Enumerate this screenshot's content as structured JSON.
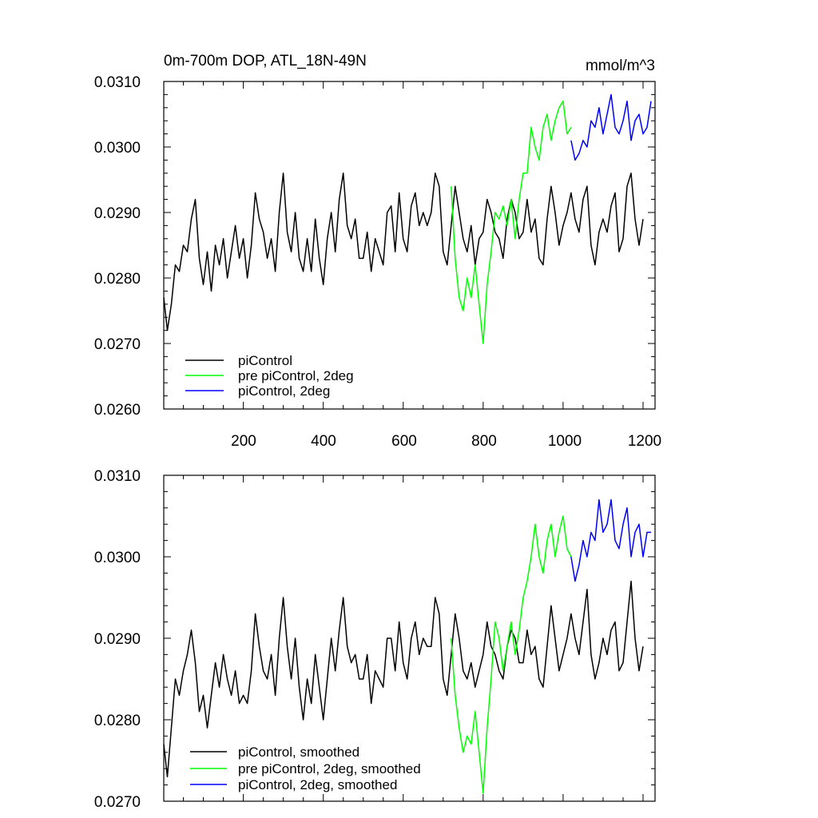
{
  "colors": {
    "black": "#000000",
    "green": "#00ff00",
    "blue": "#0000ff",
    "frame": "#000000"
  },
  "chart_data": [
    {
      "type": "line",
      "title": "0m-700m DOP, ATL_18N-49N",
      "units": "mmol/m^3",
      "xlabel": "",
      "ylabel": "",
      "xlim": [
        1,
        1230
      ],
      "ylim": [
        0.026,
        0.031
      ],
      "yticks": [
        "0.0260",
        "0.0270",
        "0.0280",
        "0.0290",
        "0.0300",
        "0.0310"
      ],
      "ytick_values": [
        0.026,
        0.027,
        0.028,
        0.029,
        0.03,
        0.031
      ],
      "xticks": [
        "200",
        "400",
        "600",
        "800",
        "1000",
        "1200"
      ],
      "xtick_values": [
        200,
        400,
        600,
        800,
        1000,
        1200
      ],
      "legend": "bottom-left",
      "series": [
        {
          "name": "piControl",
          "color": "black",
          "x": [
            1,
            10,
            20,
            30,
            40,
            50,
            60,
            70,
            80,
            90,
            100,
            110,
            120,
            130,
            140,
            150,
            160,
            170,
            180,
            190,
            200,
            210,
            220,
            230,
            240,
            250,
            260,
            270,
            280,
            290,
            300,
            310,
            320,
            330,
            340,
            350,
            360,
            370,
            380,
            390,
            400,
            410,
            420,
            430,
            440,
            450,
            460,
            470,
            480,
            490,
            500,
            510,
            520,
            530,
            540,
            550,
            560,
            570,
            580,
            590,
            600,
            610,
            620,
            630,
            640,
            650,
            660,
            670,
            680,
            690,
            700,
            710,
            720,
            730,
            740,
            750,
            760,
            770,
            780,
            790,
            800,
            810,
            820,
            830,
            840,
            850,
            860,
            870,
            880,
            890,
            900,
            910,
            920,
            930,
            940,
            950,
            960,
            970,
            980,
            990,
            1000,
            1010,
            1020,
            1030,
            1040,
            1050,
            1060,
            1070,
            1080,
            1090,
            1100,
            1110,
            1120,
            1130,
            1140,
            1150,
            1160,
            1170,
            1180,
            1190,
            1200
          ],
          "values": [
            0.0277,
            0.0272,
            0.0276,
            0.0282,
            0.0281,
            0.0285,
            0.0284,
            0.0289,
            0.0292,
            0.0283,
            0.0279,
            0.0284,
            0.0278,
            0.0285,
            0.0282,
            0.0286,
            0.028,
            0.0284,
            0.0288,
            0.0283,
            0.0286,
            0.028,
            0.0285,
            0.0293,
            0.0289,
            0.0287,
            0.0283,
            0.0286,
            0.0281,
            0.029,
            0.0296,
            0.0287,
            0.0284,
            0.029,
            0.0283,
            0.0281,
            0.0286,
            0.0281,
            0.0289,
            0.0283,
            0.0279,
            0.0286,
            0.029,
            0.0284,
            0.0292,
            0.0296,
            0.0288,
            0.0286,
            0.0289,
            0.0283,
            0.0283,
            0.0287,
            0.0281,
            0.0286,
            0.0284,
            0.0282,
            0.029,
            0.0291,
            0.0284,
            0.0293,
            0.0286,
            0.0284,
            0.0291,
            0.0293,
            0.0288,
            0.029,
            0.0288,
            0.029,
            0.0296,
            0.0294,
            0.0284,
            0.0282,
            0.0288,
            0.0294,
            0.029,
            0.0286,
            0.0284,
            0.0288,
            0.0282,
            0.0286,
            0.0287,
            0.0292,
            0.029,
            0.0287,
            0.0286,
            0.0283,
            0.0289,
            0.0292,
            0.029,
            0.0286,
            0.0287,
            0.0292,
            0.0287,
            0.0289,
            0.0283,
            0.0282,
            0.0289,
            0.0294,
            0.029,
            0.0285,
            0.0288,
            0.029,
            0.0293,
            0.0289,
            0.0287,
            0.0292,
            0.0294,
            0.0285,
            0.0282,
            0.0287,
            0.0289,
            0.0287,
            0.0291,
            0.0293,
            0.0284,
            0.0286,
            0.0294,
            0.0296,
            0.0289,
            0.0285,
            0.0289
          ]
        },
        {
          "name": "pre piControl, 2deg",
          "color": "green",
          "x": [
            720,
            730,
            740,
            750,
            760,
            770,
            780,
            790,
            800,
            810,
            820,
            830,
            840,
            850,
            860,
            870,
            880,
            890,
            900,
            910,
            920,
            930,
            940,
            950,
            960,
            970,
            980,
            990,
            1000,
            1010,
            1020
          ],
          "values": [
            0.0294,
            0.0283,
            0.0277,
            0.0275,
            0.028,
            0.0277,
            0.0282,
            0.0276,
            0.027,
            0.0279,
            0.0284,
            0.029,
            0.0289,
            0.0291,
            0.0288,
            0.0292,
            0.0286,
            0.0292,
            0.0296,
            0.0296,
            0.0303,
            0.03,
            0.0298,
            0.0303,
            0.0305,
            0.0301,
            0.0304,
            0.0306,
            0.0307,
            0.0302,
            0.0303
          ]
        },
        {
          "name": "piControl, 2deg",
          "color": "blue",
          "x": [
            1020,
            1030,
            1040,
            1050,
            1060,
            1070,
            1080,
            1090,
            1100,
            1110,
            1120,
            1130,
            1140,
            1150,
            1160,
            1170,
            1180,
            1190,
            1200,
            1210,
            1220
          ],
          "values": [
            0.0301,
            0.0298,
            0.0299,
            0.0301,
            0.03,
            0.0304,
            0.0303,
            0.0306,
            0.0302,
            0.0305,
            0.0308,
            0.0303,
            0.0302,
            0.0304,
            0.0307,
            0.0301,
            0.0304,
            0.0305,
            0.0302,
            0.0303,
            0.0307
          ]
        }
      ]
    },
    {
      "type": "line",
      "title": "",
      "xlabel": "",
      "ylabel": "",
      "xlim": [
        1,
        1230
      ],
      "ylim": [
        0.027,
        0.031
      ],
      "yticks": [
        "0.0270",
        "0.0280",
        "0.0290",
        "0.0300",
        "0.0310"
      ],
      "ytick_values": [
        0.027,
        0.028,
        0.029,
        0.03,
        0.031
      ],
      "xticks": [],
      "xtick_values": [
        200,
        400,
        600,
        800,
        1000,
        1200
      ],
      "legend": "bottom-left",
      "series": [
        {
          "name": "piControl, smoothed",
          "color": "black",
          "x": [
            1,
            10,
            20,
            30,
            40,
            50,
            60,
            70,
            80,
            90,
            100,
            110,
            120,
            130,
            140,
            150,
            160,
            170,
            180,
            190,
            200,
            210,
            220,
            230,
            240,
            250,
            260,
            270,
            280,
            290,
            300,
            310,
            320,
            330,
            340,
            350,
            360,
            370,
            380,
            390,
            400,
            410,
            420,
            430,
            440,
            450,
            460,
            470,
            480,
            490,
            500,
            510,
            520,
            530,
            540,
            550,
            560,
            570,
            580,
            590,
            600,
            610,
            620,
            630,
            640,
            650,
            660,
            670,
            680,
            690,
            700,
            710,
            720,
            730,
            740,
            750,
            760,
            770,
            780,
            790,
            800,
            810,
            820,
            830,
            840,
            850,
            860,
            870,
            880,
            890,
            900,
            910,
            920,
            930,
            940,
            950,
            960,
            970,
            980,
            990,
            1000,
            1010,
            1020,
            1030,
            1040,
            1050,
            1060,
            1070,
            1080,
            1090,
            1100,
            1110,
            1120,
            1130,
            1140,
            1150,
            1160,
            1170,
            1180,
            1190,
            1200
          ],
          "values": [
            0.0277,
            0.0273,
            0.0279,
            0.0285,
            0.0283,
            0.0286,
            0.0288,
            0.0291,
            0.0287,
            0.0281,
            0.0283,
            0.0279,
            0.0283,
            0.0287,
            0.0284,
            0.0288,
            0.0285,
            0.0283,
            0.0286,
            0.0282,
            0.0283,
            0.0282,
            0.0286,
            0.0293,
            0.0289,
            0.0286,
            0.0285,
            0.0288,
            0.0283,
            0.029,
            0.0295,
            0.0289,
            0.0285,
            0.029,
            0.0284,
            0.028,
            0.0285,
            0.0282,
            0.0288,
            0.0284,
            0.028,
            0.0285,
            0.029,
            0.0286,
            0.0291,
            0.0295,
            0.0289,
            0.0287,
            0.0288,
            0.0285,
            0.0285,
            0.0288,
            0.0282,
            0.0286,
            0.0285,
            0.0284,
            0.029,
            0.029,
            0.0286,
            0.0292,
            0.0287,
            0.0285,
            0.029,
            0.0292,
            0.0288,
            0.029,
            0.0289,
            0.0289,
            0.0295,
            0.0293,
            0.0285,
            0.0283,
            0.0288,
            0.0293,
            0.029,
            0.0286,
            0.0285,
            0.0287,
            0.0284,
            0.0286,
            0.0288,
            0.0292,
            0.0289,
            0.0288,
            0.0286,
            0.0285,
            0.0289,
            0.0291,
            0.029,
            0.0287,
            0.0287,
            0.0291,
            0.0288,
            0.0289,
            0.0285,
            0.0284,
            0.0289,
            0.0294,
            0.029,
            0.0286,
            0.0288,
            0.029,
            0.0293,
            0.029,
            0.0288,
            0.0292,
            0.0296,
            0.0288,
            0.0285,
            0.0287,
            0.029,
            0.0288,
            0.0291,
            0.0292,
            0.0286,
            0.0287,
            0.0292,
            0.0297,
            0.029,
            0.0286,
            0.0289
          ]
        },
        {
          "name": "pre piControl, 2deg, smoothed",
          "color": "green",
          "x": [
            720,
            730,
            740,
            750,
            760,
            770,
            780,
            790,
            800,
            810,
            820,
            830,
            840,
            850,
            860,
            870,
            880,
            890,
            900,
            910,
            920,
            930,
            940,
            950,
            960,
            970,
            980,
            990,
            1000,
            1010,
            1020
          ],
          "values": [
            0.029,
            0.0283,
            0.0279,
            0.0276,
            0.0278,
            0.0277,
            0.0281,
            0.0276,
            0.0271,
            0.0279,
            0.0285,
            0.0292,
            0.029,
            0.0286,
            0.0289,
            0.0292,
            0.0288,
            0.0291,
            0.0295,
            0.0297,
            0.03,
            0.0304,
            0.03,
            0.0298,
            0.0302,
            0.0304,
            0.03,
            0.0303,
            0.0305,
            0.0301,
            0.03
          ]
        },
        {
          "name": "piControl, 2deg, smoothed",
          "color": "blue",
          "x": [
            1020,
            1030,
            1040,
            1050,
            1060,
            1070,
            1080,
            1090,
            1100,
            1110,
            1120,
            1130,
            1140,
            1150,
            1160,
            1170,
            1180,
            1190,
            1200,
            1210,
            1220
          ],
          "values": [
            0.03,
            0.0297,
            0.0299,
            0.0302,
            0.03,
            0.0303,
            0.0302,
            0.0307,
            0.0303,
            0.0304,
            0.0307,
            0.0302,
            0.0301,
            0.0304,
            0.0306,
            0.03,
            0.0303,
            0.0304,
            0.03,
            0.0303,
            0.0303
          ]
        }
      ]
    }
  ]
}
